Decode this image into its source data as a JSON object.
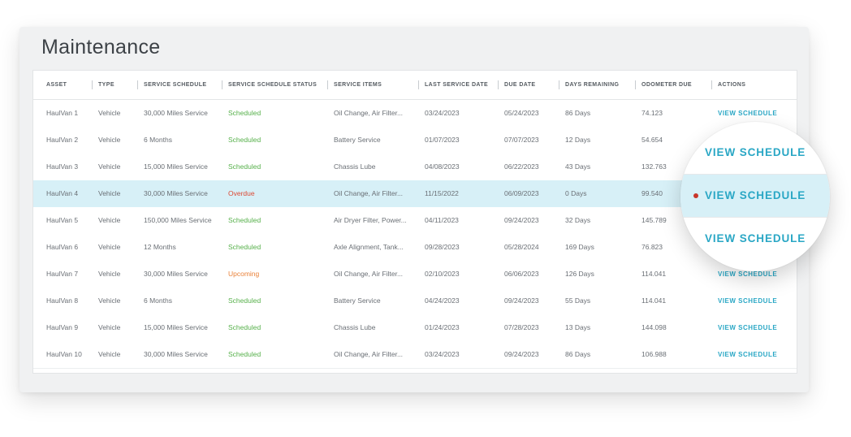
{
  "page": {
    "title": "Maintenance"
  },
  "columns": [
    "ASSET",
    "TYPE",
    "SERVICE SCHEDULE",
    "SERVICE SCHEDULE STATUS",
    "SERVICE ITEMS",
    "LAST SERVICE DATE",
    "DUE DATE",
    "DAYS REMAINING",
    "ODOMETER DUE",
    "ACTIONS"
  ],
  "rows": [
    {
      "asset": "HaulVan 1",
      "type": "Vehicle",
      "schedule": "30,000 Miles Service",
      "status": "Scheduled",
      "items": "Oil Change, Air Filter...",
      "last": "03/24/2023",
      "due": "05/24/2023",
      "days": "86 Days",
      "odometer": "74.123",
      "action": "VIEW SCHEDULE"
    },
    {
      "asset": "HaulVan 2",
      "type": "Vehicle",
      "schedule": "6 Months",
      "status": "Scheduled",
      "items": "Battery Service",
      "last": "01/07/2023",
      "due": "07/07/2023",
      "days": "12 Days",
      "odometer": "54.654",
      "action": "VIEW SCHEDULE"
    },
    {
      "asset": "HaulVan 3",
      "type": "Vehicle",
      "schedule": "15,000 Miles Service",
      "status": "Scheduled",
      "items": "Chassis Lube",
      "last": "04/08/2023",
      "due": "06/22/2023",
      "days": "43 Days",
      "odometer": "132.763",
      "action": "VIEW SCHEDULE"
    },
    {
      "asset": "HaulVan 4",
      "type": "Vehicle",
      "schedule": "30,000 Miles Service",
      "status": "Overdue",
      "items": "Oil Change, Air Filter...",
      "last": "11/15/2022",
      "due": "06/09/2023",
      "days": "0 Days",
      "odometer": "99.540",
      "action": "VIEW SCHEDULE"
    },
    {
      "asset": "HaulVan 5",
      "type": "Vehicle",
      "schedule": "150,000 Miles Service",
      "status": "Scheduled",
      "items": "Air Dryer Filter, Power...",
      "last": "04/11/2023",
      "due": "09/24/2023",
      "days": "32 Days",
      "odometer": "145.789",
      "action": "VIEW SCHEDULE"
    },
    {
      "asset": "HaulVan 6",
      "type": "Vehicle",
      "schedule": "12 Months",
      "status": "Scheduled",
      "items": "Axle Alignment, Tank...",
      "last": "09/28/2023",
      "due": "05/28/2024",
      "days": "169 Days",
      "odometer": "76.823",
      "action": "VIEW SCHEDULE"
    },
    {
      "asset": "HaulVan 7",
      "type": "Vehicle",
      "schedule": "30,000 Miles Service",
      "status": "Upcoming",
      "items": "Oil Change, Air Filter...",
      "last": "02/10/2023",
      "due": "06/06/2023",
      "days": "126 Days",
      "odometer": "114.041",
      "action": "VIEW SCHEDULE"
    },
    {
      "asset": "HaulVan 8",
      "type": "Vehicle",
      "schedule": "6 Months",
      "status": "Scheduled",
      "items": "Battery Service",
      "last": "04/24/2023",
      "due": "09/24/2023",
      "days": "55 Days",
      "odometer": "114.041",
      "action": "VIEW SCHEDULE"
    },
    {
      "asset": "HaulVan 9",
      "type": "Vehicle",
      "schedule": "15,000 Miles Service",
      "status": "Scheduled",
      "items": "Chassis Lube",
      "last": "01/24/2023",
      "due": "07/28/2023",
      "days": "13 Days",
      "odometer": "144.098",
      "action": "VIEW SCHEDULE"
    },
    {
      "asset": "HaulVan 10",
      "type": "Vehicle",
      "schedule": "30,000 Miles Service",
      "status": "Scheduled",
      "items": "Oil Change, Air Filter...",
      "last": "03/24/2023",
      "due": "09/24/2023",
      "days": "86 Days",
      "odometer": "106.988",
      "action": "VIEW SCHEDULE"
    }
  ],
  "magnifier": {
    "links": [
      "VIEW SCHEDULE",
      "VIEW SCHEDULE",
      "VIEW SCHEDULE"
    ],
    "marker_icon": "red-dot-indicator"
  },
  "colors": {
    "accent": "#2aa7c5",
    "scheduled": "#56b04a",
    "overdue": "#dc4a35",
    "upcoming": "#e9823a",
    "highlight_row": "#d7f0f7"
  }
}
